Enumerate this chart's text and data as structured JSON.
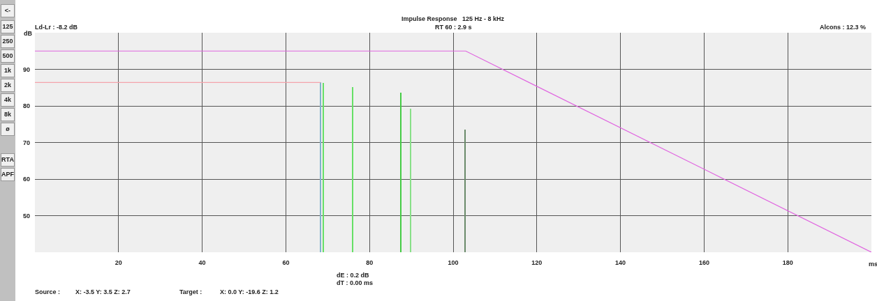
{
  "chart_data": {
    "type": "line",
    "title": "Impulse Response   125 Hz - 8 kHz",
    "subtitle": "RT 60 : 2.9 s",
    "xlabel": "ms",
    "ylabel": "dB",
    "annotations": [
      "Ld-Lr : -8.2 dB",
      "Alcons : 12.3 %",
      "dE : 0.2 dB",
      "dT : 0.00 ms",
      "Source :",
      "X: -3.5   Y: 3.5   Z: 2.7",
      "Target :",
      "X: 0.0   Y: -19.6   Z: 1.2",
      "<-",
      "125",
      "250",
      "500",
      "1k",
      "2k",
      "4k",
      "8k",
      "ø",
      "RTA",
      "APF"
    ],
    "series": [
      {
        "color": "#e066e0",
        "x": [
          0,
          103,
          200
        ],
        "values": [
          95,
          95,
          40
        ]
      },
      {
        "color": "#f4a4ac",
        "x": [
          0,
          68.3
        ],
        "values": [
          86.4,
          86.4
        ]
      },
      {
        "type": "bar",
        "x": [
          68.3,
          69.0,
          76.0,
          87.5,
          89.8,
          102.9
        ],
        "values": [
          86.4,
          86.2,
          85.1,
          83.7,
          79.2,
          73.6
        ],
        "colors": [
          "#80b4cc",
          "#66e066",
          "#66e066",
          "#44cc44",
          "#88e088",
          "#6a8a6a"
        ]
      }
    ],
    "xlim": [
      0,
      200
    ],
    "ylim": [
      40,
      100
    ],
    "xticks": [
      20,
      40,
      60,
      80,
      100,
      120,
      140,
      160,
      180
    ],
    "yticks": [
      50,
      60,
      70,
      80,
      90
    ],
    "grid": true,
    "line_style": "solid",
    "marker": "none"
  }
}
